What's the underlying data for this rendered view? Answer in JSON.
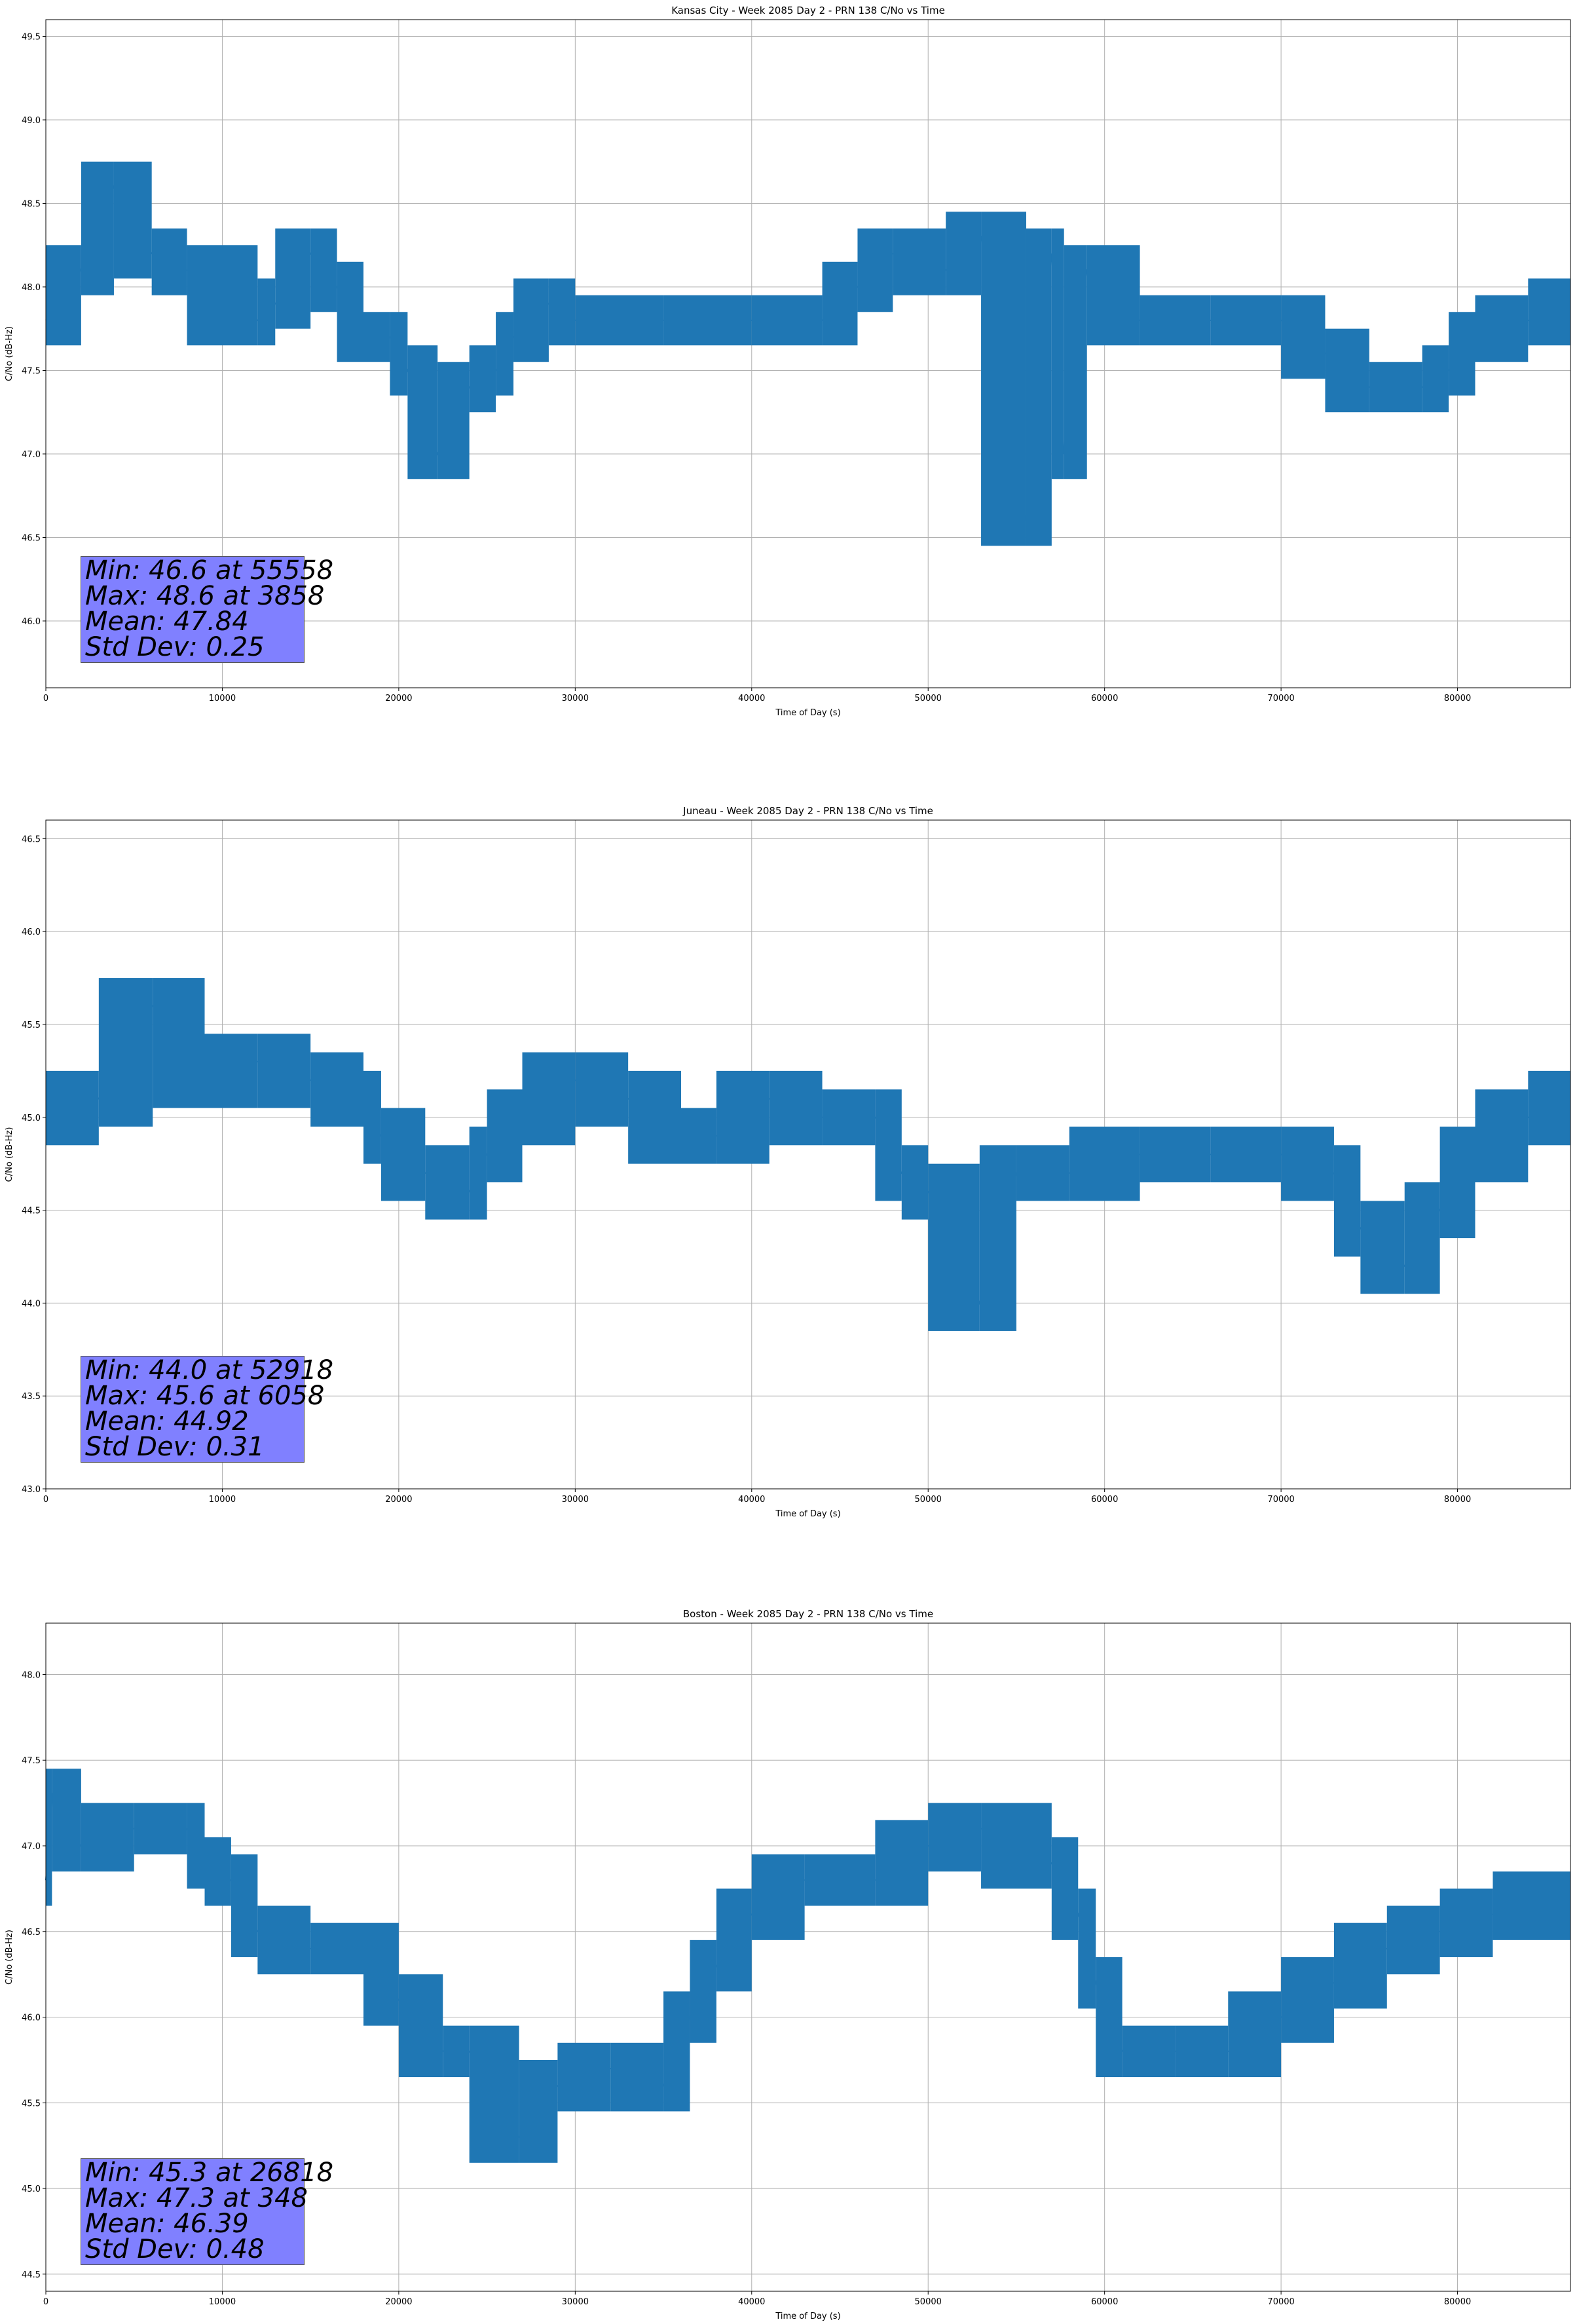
{
  "chart_data": [
    {
      "type": "line",
      "title": "Kansas City - Week 2085 Day 2 - PRN 138 C/No vs Time",
      "xlabel": "Time of Day (s)",
      "ylabel": "C/No (dB-Hz)",
      "xlim": [
        0,
        86400
      ],
      "ylim": [
        45.6,
        49.6
      ],
      "xticks": [
        0,
        10000,
        20000,
        30000,
        40000,
        50000,
        60000,
        70000,
        80000
      ],
      "yticks": [
        46.0,
        46.5,
        47.0,
        47.5,
        48.0,
        48.5,
        49.0,
        49.5
      ],
      "grid": true,
      "series_color": "#1f77b4",
      "series": [
        {
          "x": [
            0,
            2000,
            3858,
            6000,
            8000,
            12000,
            13000,
            15000,
            16500,
            18000,
            19500,
            20500,
            22200,
            24000,
            25500,
            26500,
            28500,
            30000,
            35000,
            40000,
            44000,
            46000,
            48000,
            51000,
            53000,
            55558,
            57000,
            57700,
            59000,
            62000,
            66000,
            70000,
            72500,
            75000,
            78000,
            79500,
            81000,
            84000,
            86400
          ],
          "y": [
            47.8,
            48.1,
            48.6,
            48.2,
            48.1,
            47.8,
            47.9,
            48.2,
            48.0,
            47.7,
            47.7,
            47.5,
            47.0,
            47.4,
            47.5,
            47.7,
            47.9,
            47.8,
            47.8,
            47.8,
            47.8,
            48.0,
            48.2,
            48.1,
            48.3,
            46.6,
            48.2,
            47.0,
            48.1,
            47.8,
            47.8,
            47.8,
            47.6,
            47.4,
            47.4,
            47.5,
            47.7,
            47.8,
            47.9
          ]
        }
      ],
      "annotation": [
        "Min: 46.6 at 55558",
        "Max: 48.6 at 3858",
        "Mean: 47.84",
        "Std Dev: 0.25"
      ]
    },
    {
      "type": "line",
      "title": "Juneau - Week 2085 Day 2 - PRN 138 C/No vs Time",
      "xlabel": "Time of Day (s)",
      "ylabel": "C/No (dB-Hz)",
      "xlim": [
        0,
        86400
      ],
      "ylim": [
        43.0,
        46.6
      ],
      "xticks": [
        0,
        10000,
        20000,
        30000,
        40000,
        50000,
        60000,
        70000,
        80000
      ],
      "yticks": [
        43.0,
        43.5,
        44.0,
        44.5,
        45.0,
        45.5,
        46.0,
        46.5
      ],
      "grid": true,
      "series_color": "#1f77b4",
      "series": [
        {
          "x": [
            0,
            3000,
            6058,
            9000,
            12000,
            15000,
            18000,
            19000,
            21500,
            24000,
            25000,
            27000,
            30000,
            33000,
            36000,
            38000,
            41000,
            44000,
            47000,
            48500,
            50000,
            52918,
            55000,
            58000,
            62000,
            66000,
            70000,
            73000,
            74500,
            77000,
            79000,
            81000,
            84000,
            86400
          ],
          "y": [
            45.0,
            45.1,
            45.6,
            45.2,
            45.3,
            45.2,
            45.1,
            44.9,
            44.7,
            44.6,
            44.8,
            45.0,
            45.2,
            45.1,
            44.9,
            44.9,
            45.1,
            45.0,
            45.0,
            44.7,
            44.6,
            44.0,
            44.7,
            44.7,
            44.8,
            44.8,
            44.8,
            44.7,
            44.4,
            44.2,
            44.5,
            44.8,
            45.0,
            45.1
          ]
        }
      ],
      "annotation": [
        "Min: 44.0 at 52918",
        "Max: 45.6 at 6058",
        "Mean: 44.92",
        "Std Dev: 0.31"
      ]
    },
    {
      "type": "line",
      "title": "Boston - Week 2085 Day 2 - PRN 138 C/No vs Time",
      "xlabel": "Time of Day (s)",
      "ylabel": "C/No (dB-Hz)",
      "xlim": [
        0,
        86400
      ],
      "ylim": [
        44.4,
        48.3
      ],
      "xticks": [
        0,
        10000,
        20000,
        30000,
        40000,
        50000,
        60000,
        70000,
        80000
      ],
      "yticks": [
        44.5,
        45.0,
        45.5,
        46.0,
        46.5,
        47.0,
        47.5,
        48.0
      ],
      "grid": true,
      "series_color": "#1f77b4",
      "series": [
        {
          "x": [
            0,
            348,
            2000,
            5000,
            8000,
            9000,
            10500,
            12000,
            15000,
            18000,
            20000,
            22500,
            24000,
            26818,
            29000,
            32000,
            35000,
            36500,
            38000,
            40000,
            43000,
            47000,
            50000,
            53000,
            57000,
            58500,
            59500,
            61000,
            64000,
            67000,
            70000,
            73000,
            76000,
            79000,
            82000,
            86400
          ],
          "y": [
            46.8,
            47.3,
            47.0,
            47.1,
            47.1,
            46.9,
            46.8,
            46.5,
            46.4,
            46.4,
            46.1,
            45.8,
            45.8,
            45.3,
            45.6,
            45.7,
            45.6,
            46.0,
            46.3,
            46.6,
            46.8,
            46.8,
            47.0,
            47.1,
            46.9,
            46.6,
            46.2,
            45.8,
            45.8,
            45.8,
            46.0,
            46.2,
            46.4,
            46.5,
            46.6,
            46.7
          ]
        }
      ],
      "annotation": [
        "Min: 45.3 at 26818",
        "Max: 47.3 at 348",
        "Mean: 46.39",
        "Std Dev: 0.48"
      ]
    }
  ]
}
